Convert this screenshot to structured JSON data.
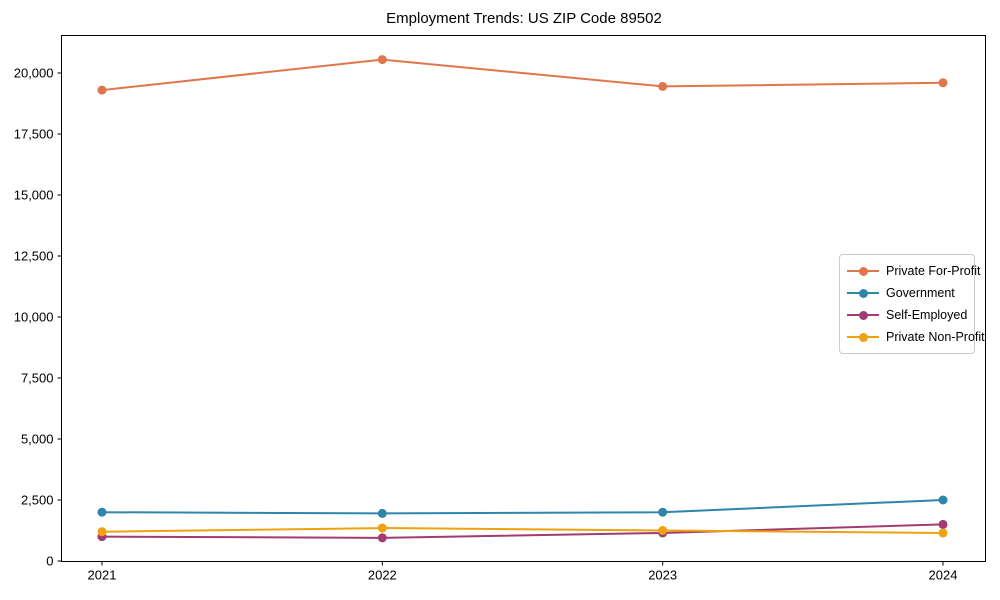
{
  "title": "Employment Trends: US ZIP Code 89502",
  "chart_data": {
    "type": "line",
    "title": "Employment Trends: US ZIP Code 89502",
    "x": [
      2021,
      2022,
      2023,
      2024
    ],
    "x_tick_labels": [
      "2021",
      "2022",
      "2023",
      "2024"
    ],
    "y_ticks": [
      0,
      2500,
      5000,
      7500,
      10000,
      12500,
      15000,
      17500,
      20000
    ],
    "y_tick_labels": [
      "0",
      "2,500",
      "5,000",
      "7,500",
      "10,000",
      "12,500",
      "15,000",
      "17,500",
      "20,000"
    ],
    "ylim": [
      -50,
      21550
    ],
    "grid": false,
    "legend_position": "center-right",
    "marker": "circle",
    "series": [
      {
        "name": "Private For-Profit",
        "color": "#E0764C",
        "values": [
          19300,
          20550,
          19450,
          19600
        ]
      },
      {
        "name": "Government",
        "color": "#2E86AB",
        "values": [
          2000,
          1950,
          2000,
          2500
        ]
      },
      {
        "name": "Self-Employed",
        "color": "#A23B72",
        "values": [
          1000,
          950,
          1150,
          1500
        ]
      },
      {
        "name": "Private Non-Profit",
        "color": "#F0A10E",
        "values": [
          1200,
          1350,
          1250,
          1150
        ]
      }
    ]
  }
}
